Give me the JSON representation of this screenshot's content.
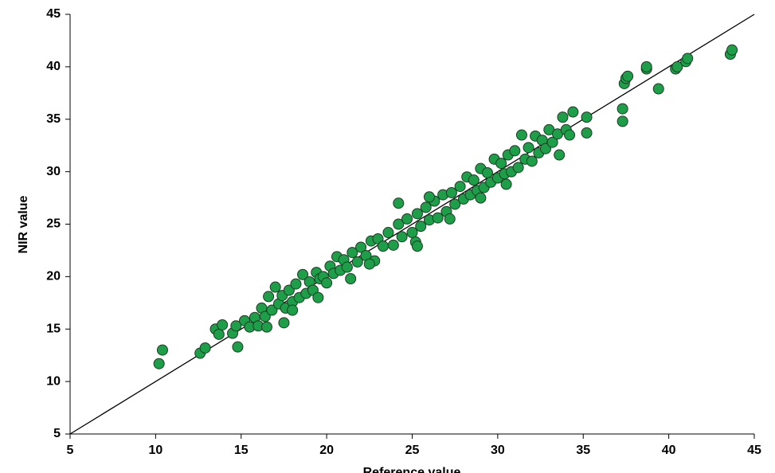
{
  "chart_data": {
    "type": "scatter",
    "x_label": "Reference value",
    "y_label": "NIR value",
    "xlim": [
      5,
      45
    ],
    "ylim": [
      5,
      45
    ],
    "xticks": [
      5,
      10,
      15,
      20,
      25,
      30,
      35,
      40,
      45
    ],
    "yticks": [
      5,
      10,
      15,
      20,
      25,
      30,
      35,
      40,
      45
    ],
    "identity_line": true,
    "series": [
      {
        "color": "#1f9e4a",
        "x": [
          15.2,
          15.5,
          15.8,
          16.0,
          16.2,
          16.4,
          16.6,
          16.8,
          17.0,
          17.2,
          17.4,
          17.6,
          17.8,
          18.0,
          18.2,
          18.4,
          18.6,
          18.8,
          19.0,
          19.2,
          19.4,
          19.6,
          19.8,
          20.0,
          20.2,
          20.4,
          20.6,
          20.8,
          21.0,
          21.2,
          21.5,
          21.8,
          22.0,
          22.3,
          22.6,
          22.8,
          23.0,
          23.3,
          23.6,
          23.9,
          24.2,
          24.4,
          24.7,
          25.0,
          25.3,
          25.5,
          25.8,
          26.0,
          26.3,
          26.5,
          26.8,
          27.0,
          27.3,
          27.5,
          27.8,
          28.0,
          28.2,
          28.4,
          28.6,
          28.8,
          29.0,
          29.2,
          29.4,
          29.6,
          29.8,
          30.0,
          30.2,
          30.4,
          30.6,
          30.8,
          31.0,
          31.2,
          31.4,
          31.6,
          31.8,
          32.0,
          32.2,
          32.4,
          32.6,
          32.8,
          33.0,
          33.2,
          33.5,
          33.8,
          34.0,
          34.2,
          33.6,
          30.5,
          29.0,
          27.2,
          25.2,
          22.5,
          19.5,
          18.0,
          16.5,
          10.2,
          10.4,
          12.6,
          12.9,
          13.5,
          13.7,
          13.9,
          14.5,
          14.8,
          14.7,
          37.3,
          37.3,
          37.4,
          37.5,
          37.6,
          38.7,
          38.7,
          39.4,
          40.4,
          40.5,
          41.0,
          41.1,
          43.6,
          43.7,
          35.2,
          35.2,
          34.4,
          24.2,
          25.3,
          26.0,
          17.5,
          21.4
        ],
        "y": [
          15.8,
          15.2,
          16.1,
          15.3,
          17.0,
          16.2,
          18.1,
          16.8,
          19.0,
          17.4,
          18.2,
          17.0,
          18.7,
          17.6,
          19.3,
          18.0,
          20.2,
          18.4,
          19.5,
          18.7,
          20.4,
          19.8,
          20.0,
          19.4,
          21.0,
          20.3,
          21.9,
          20.6,
          21.6,
          20.9,
          22.3,
          21.4,
          22.8,
          22.0,
          23.4,
          21.5,
          23.6,
          22.9,
          24.2,
          23.0,
          25.0,
          23.8,
          25.5,
          24.2,
          26.0,
          24.8,
          26.6,
          25.4,
          27.2,
          25.6,
          27.8,
          26.2,
          28.0,
          26.9,
          28.6,
          27.4,
          29.5,
          27.8,
          29.2,
          28.2,
          30.3,
          28.5,
          29.9,
          29.0,
          31.2,
          29.4,
          30.8,
          29.8,
          31.6,
          30.0,
          32.0,
          30.4,
          33.5,
          31.2,
          32.3,
          31.0,
          33.4,
          31.8,
          33.0,
          32.2,
          34.0,
          32.8,
          33.6,
          35.2,
          34.0,
          33.5,
          31.6,
          28.8,
          27.5,
          25.5,
          23.3,
          21.2,
          18.0,
          16.8,
          15.2,
          11.7,
          13.0,
          12.7,
          13.2,
          15.0,
          14.5,
          15.4,
          14.6,
          13.3,
          15.3,
          34.8,
          36.0,
          38.4,
          38.9,
          39.1,
          39.8,
          40.0,
          37.9,
          39.8,
          40.0,
          40.5,
          40.8,
          41.2,
          41.6,
          35.2,
          33.7,
          35.7,
          27.0,
          22.9,
          27.6,
          15.6,
          19.8
        ]
      }
    ]
  }
}
